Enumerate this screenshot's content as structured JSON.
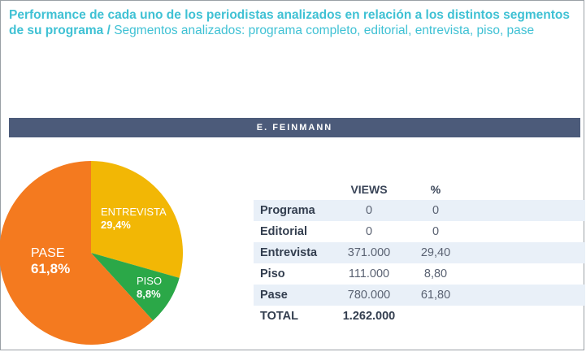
{
  "title": {
    "bold": "Performance de cada uno de los periodistas analizados en relación a los distintos segmentos de su programa /",
    "light": " Segmentos analizados: programa completo, editorial, entrevista, piso, pase"
  },
  "band_label": "E. FEINMANN",
  "chart_data": {
    "type": "pie",
    "slices": [
      {
        "label": "PASE",
        "pct_label": "61,8%",
        "value": 61.8,
        "color": "#f47a1f"
      },
      {
        "label": "ENTREVISTA",
        "pct_label": "29,4%",
        "value": 29.4,
        "color": "#f2b705"
      },
      {
        "label": "PISO",
        "pct_label": "8,8%",
        "value": 8.8,
        "color": "#2ba848"
      }
    ]
  },
  "table": {
    "headers": {
      "views": "VIEWS",
      "pct": "%"
    },
    "rows": [
      {
        "name": "Programa",
        "views": "0",
        "pct": "0"
      },
      {
        "name": "Editorial",
        "views": "0",
        "pct": "0"
      },
      {
        "name": "Entrevista",
        "views": "371.000",
        "pct": "29,40"
      },
      {
        "name": "Piso",
        "views": "111.000",
        "pct": "8,80"
      },
      {
        "name": "Pase",
        "views": "780.000",
        "pct": "61,80"
      }
    ],
    "total": {
      "name": "TOTAL",
      "views": "1.262.000"
    }
  }
}
